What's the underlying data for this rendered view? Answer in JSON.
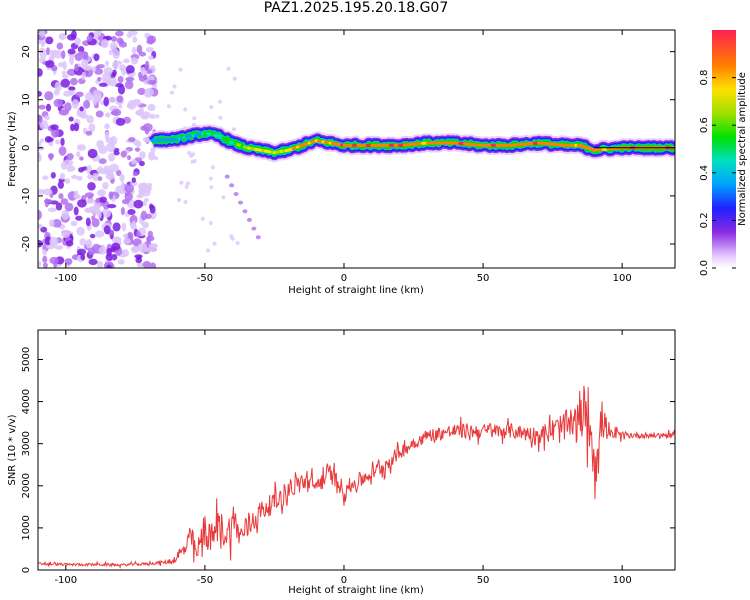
{
  "title": "PAZ1.2025.195.20.18.G07",
  "colors": {
    "snr_line": "#e83a3a",
    "ridge_core": "#e8203a",
    "scatter": "#8a2be2"
  },
  "chart_data": [
    {
      "type": "heatmap",
      "xlabel": "Height of straight line (km)",
      "ylabel": "Frequency (Hz)",
      "xlim": [
        -110,
        119
      ],
      "ylim": [
        -25,
        24.5
      ],
      "xticks": [
        "-100",
        "-50",
        "0",
        "50",
        "100"
      ],
      "xtick_values": [
        -100,
        -50,
        0,
        50,
        100
      ],
      "yticks": [
        "-20",
        "-10",
        "0",
        "10",
        "20"
      ],
      "ytick_values": [
        -20,
        -10,
        0,
        10,
        20
      ],
      "colorbar": {
        "label": "Normalized spectral amplitude",
        "range": [
          0,
          1
        ],
        "ticks": [
          "0.0",
          "0.2",
          "0.4",
          "0.6",
          "0.8"
        ],
        "tick_values": [
          0.0,
          0.2,
          0.4,
          0.6,
          0.8
        ]
      },
      "noise_region_x": [
        -110,
        -68
      ],
      "ridge": {
        "x": [
          -69,
          -60,
          -55,
          -50,
          -45,
          -40,
          -35,
          -30,
          -25,
          -20,
          -15,
          -10,
          -5,
          0,
          10,
          20,
          30,
          40,
          50,
          60,
          70,
          80,
          85,
          90,
          100,
          110,
          119
        ],
        "freq": [
          1.5,
          1.8,
          2.5,
          3.0,
          2.5,
          1.0,
          0.0,
          -0.5,
          -1.0,
          -0.5,
          0.5,
          1.5,
          1.0,
          0.5,
          0.5,
          0.5,
          1.0,
          1.0,
          0.5,
          0.5,
          1.0,
          0.5,
          0.5,
          -0.5,
          0.0,
          0.0,
          0.0
        ],
        "amplitude": [
          0.3,
          0.4,
          0.45,
          0.5,
          0.55,
          0.6,
          0.7,
          0.75,
          0.8,
          0.8,
          0.85,
          0.85,
          0.9,
          0.95,
          0.95,
          0.95,
          0.9,
          0.95,
          0.95,
          0.95,
          0.95,
          0.95,
          0.9,
          0.9,
          0.95,
          0.95,
          0.95
        ]
      }
    },
    {
      "type": "line",
      "xlabel": "Height of straight line (km)",
      "ylabel": "SNR (10 * v/v)",
      "xlim": [
        -110,
        119
      ],
      "ylim": [
        0,
        5700
      ],
      "xticks": [
        "-100",
        "-50",
        "0",
        "50",
        "100"
      ],
      "xtick_values": [
        -100,
        -50,
        0,
        50,
        100
      ],
      "yticks": [
        "0",
        "1000",
        "2000",
        "3000",
        "4000",
        "5000"
      ],
      "ytick_values": [
        0,
        1000,
        2000,
        3000,
        4000,
        5000
      ],
      "series": [
        {
          "x": [
            -110,
            -100,
            -90,
            -80,
            -70,
            -62,
            -57,
            -55,
            -53,
            -50,
            -48,
            -45,
            -42,
            -40,
            -37,
            -35,
            -30,
            -25,
            -20,
            -15,
            -10,
            -5,
            0,
            5,
            10,
            15,
            20,
            25,
            30,
            40,
            50,
            60,
            70,
            75,
            80,
            85,
            87,
            89,
            91,
            93,
            95,
            100,
            110,
            119
          ],
          "y": [
            150,
            130,
            130,
            120,
            150,
            200,
            500,
            800,
            350,
            1000,
            700,
            1100,
            800,
            1200,
            800,
            1000,
            1400,
            1600,
            1900,
            2100,
            2000,
            2300,
            1900,
            2100,
            2300,
            2500,
            2800,
            3000,
            3200,
            3300,
            3300,
            3300,
            3200,
            3300,
            3400,
            3500,
            4000,
            3200,
            2600,
            3700,
            3200,
            3200,
            3200,
            3200
          ],
          "jitter": [
            60,
            60,
            60,
            60,
            60,
            100,
            400,
            600,
            500,
            900,
            700,
            800,
            700,
            900,
            600,
            700,
            500,
            500,
            500,
            500,
            450,
            450,
            400,
            400,
            350,
            350,
            350,
            300,
            300,
            350,
            350,
            350,
            400,
            600,
            800,
            1000,
            1300,
            1600,
            1400,
            900,
            350,
            150,
            130,
            130
          ]
        }
      ]
    }
  ]
}
